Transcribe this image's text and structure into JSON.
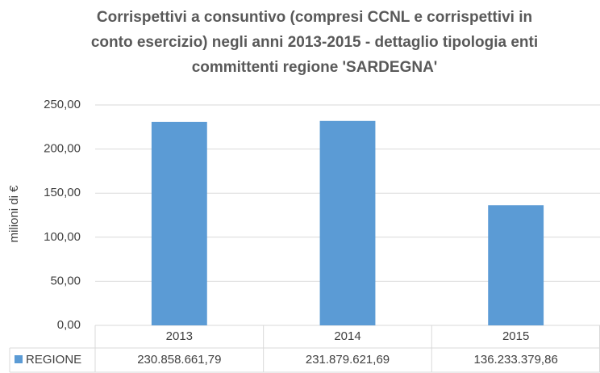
{
  "chart_data": {
    "type": "bar",
    "title": [
      "Corrispettivi a consuntivo (compresi CCNL e corrispettivi in",
      "conto esercizio) negli anni 2013-2015 - dettaglio tipologia enti",
      "committenti regione 'SARDEGNA'"
    ],
    "y_label": "milioni di €",
    "categories": [
      "2013",
      "2014",
      "2015"
    ],
    "series": [
      {
        "name": "REGIONE",
        "color": "#5b9bd5",
        "values": [
          230.85866179,
          231.87962169,
          136.23337986
        ],
        "value_labels": [
          "230.858.661,79",
          "231.879.621,69",
          "136.233.379,86"
        ]
      }
    ],
    "ylim": [
      0,
      250
    ],
    "yticks": [
      {
        "value": 0,
        "label": "0,00"
      },
      {
        "value": 50,
        "label": "50,00"
      },
      {
        "value": 100,
        "label": "100,00"
      },
      {
        "value": 150,
        "label": "150,00"
      },
      {
        "value": 200,
        "label": "200,00"
      },
      {
        "value": 250,
        "label": "250,00"
      }
    ],
    "grid": true
  }
}
